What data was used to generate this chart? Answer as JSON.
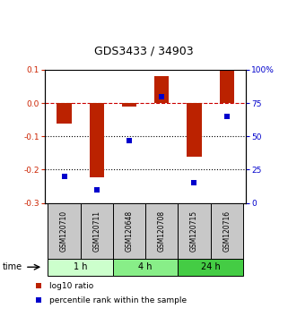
{
  "title": "GDS3433 / 34903",
  "samples": [
    "GSM120710",
    "GSM120711",
    "GSM120648",
    "GSM120708",
    "GSM120715",
    "GSM120716"
  ],
  "log10_ratio": [
    -0.062,
    -0.222,
    -0.01,
    0.082,
    -0.16,
    0.098
  ],
  "percentile_rank": [
    20,
    10,
    47,
    80,
    15,
    65
  ],
  "ylim": [
    -0.3,
    0.1
  ],
  "yticks_left": [
    -0.3,
    -0.2,
    -0.1,
    0.0,
    0.1
  ],
  "yticks_right": [
    0,
    25,
    50,
    75,
    100
  ],
  "bar_color": "#bb2200",
  "dot_color": "#0000cc",
  "time_groups": [
    {
      "label": "1 h",
      "start": 0,
      "end": 2,
      "color": "#ccffcc"
    },
    {
      "label": "4 h",
      "start": 2,
      "end": 4,
      "color": "#88ee88"
    },
    {
      "label": "24 h",
      "start": 4,
      "end": 6,
      "color": "#44cc44"
    }
  ],
  "legend_bar_label": "log10 ratio",
  "legend_dot_label": "percentile rank within the sample",
  "time_label": "time",
  "dashed_line_color": "#cc0000",
  "dotted_line_color": "#000000",
  "background_color": "#ffffff"
}
